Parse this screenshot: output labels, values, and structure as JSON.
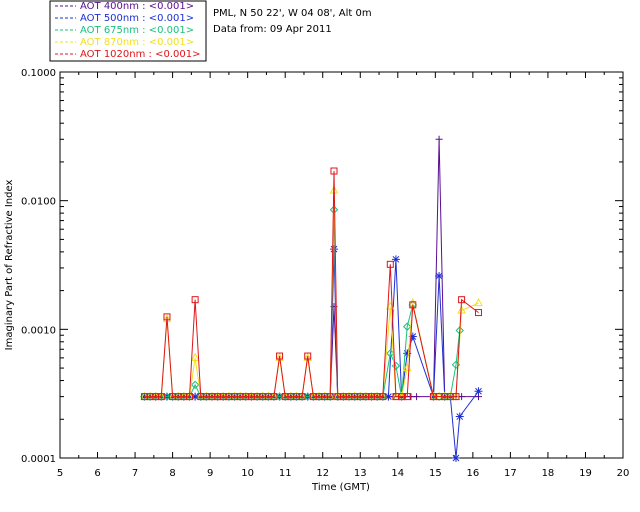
{
  "header": {
    "site": "PML, N 50 22', W 04 08', Alt 0m",
    "date": "Data from: 09 Apr 2011"
  },
  "chart_data": {
    "type": "line",
    "title": "",
    "xlabel": "Time (GMT)",
    "ylabel": "Imaginary Part of Refractive Index",
    "xlim": [
      5,
      20
    ],
    "ylim": [
      0.0001,
      0.1
    ],
    "yscale": "log",
    "x_ticks": [
      "5",
      "6",
      "7",
      "8",
      "9",
      "10",
      "11",
      "12",
      "13",
      "14",
      "15",
      "16",
      "17",
      "18",
      "19",
      "20"
    ],
    "y_ticks": [
      "0.0001",
      "0.0010",
      "0.0100",
      "0.1000"
    ],
    "legend_position": "top-left, outside",
    "series": [
      {
        "name": "AOT  400nm : <0.001>",
        "color": "#5a0f91",
        "marker": "plus",
        "x": [
          7.25,
          7.4,
          7.55,
          7.7,
          7.85,
          8.0,
          8.15,
          8.3,
          8.45,
          8.6,
          8.75,
          8.9,
          9.05,
          9.2,
          9.35,
          9.5,
          9.65,
          9.8,
          9.95,
          10.1,
          10.25,
          10.4,
          10.55,
          10.7,
          10.85,
          11.0,
          11.15,
          11.3,
          11.45,
          11.6,
          11.75,
          11.9,
          12.05,
          12.2,
          12.3,
          12.4,
          12.55,
          12.7,
          12.85,
          13.0,
          13.15,
          13.3,
          13.45,
          13.6,
          13.75,
          13.9,
          14.05,
          14.2,
          14.35,
          14.5,
          14.95,
          15.1,
          15.25,
          15.4,
          15.55,
          15.7,
          16.15
        ],
        "values": [
          0.0003,
          0.0003,
          0.0003,
          0.0003,
          0.0003,
          0.0003,
          0.0003,
          0.0003,
          0.0003,
          0.0003,
          0.0003,
          0.0003,
          0.0003,
          0.0003,
          0.0003,
          0.0003,
          0.0003,
          0.0003,
          0.0003,
          0.0003,
          0.0003,
          0.0003,
          0.0003,
          0.0003,
          0.0003,
          0.0003,
          0.0003,
          0.0003,
          0.0003,
          0.0003,
          0.0003,
          0.0003,
          0.0003,
          0.0003,
          0.0015,
          0.0003,
          0.0003,
          0.0003,
          0.0003,
          0.0003,
          0.0003,
          0.0003,
          0.0003,
          0.0003,
          0.0003,
          0.0003,
          0.0003,
          0.0003,
          0.0003,
          0.0003,
          0.0003,
          0.03,
          0.0003,
          0.0003,
          0.0003,
          0.0003,
          0.0003
        ]
      },
      {
        "name": "AOT  500nm : <0.001>",
        "color": "#1f2fd6",
        "marker": "star",
        "x": [
          7.25,
          7.4,
          7.55,
          7.7,
          7.85,
          8.0,
          8.15,
          8.3,
          8.45,
          8.6,
          8.75,
          8.9,
          9.05,
          9.2,
          9.35,
          9.5,
          9.65,
          9.8,
          9.95,
          10.1,
          10.25,
          10.4,
          10.55,
          10.7,
          10.85,
          11.0,
          11.15,
          11.3,
          11.45,
          11.6,
          11.75,
          11.9,
          12.05,
          12.2,
          12.3,
          12.4,
          12.55,
          12.7,
          12.85,
          13.0,
          13.15,
          13.3,
          13.45,
          13.6,
          13.75,
          13.95,
          14.1,
          14.25,
          14.4,
          14.95,
          15.1,
          15.25,
          15.4,
          15.55,
          15.65,
          16.15
        ],
        "values": [
          0.0003,
          0.0003,
          0.0003,
          0.0003,
          0.0003,
          0.0003,
          0.0003,
          0.0003,
          0.0003,
          0.0003,
          0.0003,
          0.0003,
          0.0003,
          0.0003,
          0.0003,
          0.0003,
          0.0003,
          0.0003,
          0.0003,
          0.0003,
          0.0003,
          0.0003,
          0.0003,
          0.0003,
          0.0003,
          0.0003,
          0.0003,
          0.0003,
          0.0003,
          0.0003,
          0.0003,
          0.0003,
          0.0003,
          0.0003,
          0.0042,
          0.0003,
          0.0003,
          0.0003,
          0.0003,
          0.0003,
          0.0003,
          0.0003,
          0.0003,
          0.0003,
          0.0003,
          0.0035,
          0.0003,
          0.00065,
          0.00088,
          0.0003,
          0.0026,
          0.0003,
          0.0003,
          0.0001,
          0.00021,
          0.00033
        ]
      },
      {
        "name": "AOT  675nm : <0.001>",
        "color": "#19c07e",
        "marker": "diamond",
        "x": [
          7.25,
          7.4,
          7.55,
          7.7,
          7.85,
          8.0,
          8.15,
          8.3,
          8.45,
          8.6,
          8.75,
          8.9,
          9.05,
          9.2,
          9.35,
          9.5,
          9.65,
          9.8,
          9.95,
          10.1,
          10.25,
          10.4,
          10.55,
          10.7,
          10.85,
          11.0,
          11.15,
          11.3,
          11.45,
          11.6,
          11.75,
          11.9,
          12.05,
          12.2,
          12.3,
          12.4,
          12.55,
          12.7,
          12.85,
          13.0,
          13.15,
          13.3,
          13.45,
          13.6,
          13.8,
          13.95,
          14.1,
          14.25,
          14.4,
          14.95,
          15.1,
          15.25,
          15.4,
          15.55,
          15.65
        ],
        "values": [
          0.0003,
          0.0003,
          0.0003,
          0.0003,
          0.0003,
          0.0003,
          0.0003,
          0.0003,
          0.0003,
          0.00037,
          0.0003,
          0.0003,
          0.0003,
          0.0003,
          0.0003,
          0.0003,
          0.0003,
          0.0003,
          0.0003,
          0.0003,
          0.0003,
          0.0003,
          0.0003,
          0.0003,
          0.0003,
          0.0003,
          0.0003,
          0.0003,
          0.0003,
          0.0003,
          0.0003,
          0.0003,
          0.0003,
          0.0003,
          0.0085,
          0.0003,
          0.0003,
          0.0003,
          0.0003,
          0.0003,
          0.0003,
          0.0003,
          0.0003,
          0.0003,
          0.00065,
          0.00052,
          0.0003,
          0.00105,
          0.00155,
          0.0003,
          0.0003,
          0.0003,
          0.0003,
          0.00053,
          0.00098
        ]
      },
      {
        "name": "AOT  870nm : <0.001>",
        "color": "#f2e01e",
        "marker": "triangle",
        "x": [
          7.25,
          7.4,
          7.55,
          7.7,
          7.85,
          8.0,
          8.15,
          8.3,
          8.45,
          8.6,
          8.75,
          8.9,
          9.05,
          9.2,
          9.35,
          9.5,
          9.65,
          9.8,
          9.95,
          10.1,
          10.25,
          10.4,
          10.55,
          10.7,
          10.85,
          11.0,
          11.15,
          11.3,
          11.45,
          11.6,
          11.75,
          11.9,
          12.05,
          12.2,
          12.3,
          12.4,
          12.55,
          12.7,
          12.85,
          13.0,
          13.15,
          13.3,
          13.45,
          13.6,
          13.8,
          13.95,
          14.1,
          14.25,
          14.4,
          14.95,
          15.1,
          15.25,
          15.4,
          15.55,
          15.7,
          16.15
        ],
        "values": [
          0.0003,
          0.0003,
          0.0003,
          0.0003,
          0.0012,
          0.0003,
          0.0003,
          0.0003,
          0.0003,
          0.0006,
          0.0003,
          0.0003,
          0.0003,
          0.0003,
          0.0003,
          0.0003,
          0.0003,
          0.0003,
          0.0003,
          0.0003,
          0.0003,
          0.0003,
          0.0003,
          0.0003,
          0.0006,
          0.0003,
          0.0003,
          0.0003,
          0.0003,
          0.0006,
          0.0003,
          0.0003,
          0.0003,
          0.0003,
          0.012,
          0.0003,
          0.0003,
          0.0003,
          0.0003,
          0.0003,
          0.0003,
          0.0003,
          0.0003,
          0.0003,
          0.0015,
          0.0003,
          0.0003,
          0.0005,
          0.0016,
          0.0003,
          0.0003,
          0.0003,
          0.0003,
          0.0003,
          0.0014,
          0.0016
        ]
      },
      {
        "name": "AOT 1020nm : <0.001>",
        "color": "#e0151a",
        "marker": "square",
        "x": [
          7.25,
          7.4,
          7.55,
          7.7,
          7.85,
          8.0,
          8.15,
          8.3,
          8.45,
          8.6,
          8.75,
          8.9,
          9.05,
          9.2,
          9.35,
          9.5,
          9.65,
          9.8,
          9.95,
          10.1,
          10.25,
          10.4,
          10.55,
          10.7,
          10.85,
          11.0,
          11.15,
          11.3,
          11.45,
          11.6,
          11.75,
          11.9,
          12.05,
          12.2,
          12.3,
          12.4,
          12.55,
          12.7,
          12.85,
          13.0,
          13.15,
          13.3,
          13.45,
          13.6,
          13.8,
          13.95,
          14.1,
          14.25,
          14.4,
          14.95,
          15.1,
          15.25,
          15.4,
          15.55,
          15.7,
          16.15
        ],
        "values": [
          0.0003,
          0.0003,
          0.0003,
          0.0003,
          0.00125,
          0.0003,
          0.0003,
          0.0003,
          0.0003,
          0.0017,
          0.0003,
          0.0003,
          0.0003,
          0.0003,
          0.0003,
          0.0003,
          0.0003,
          0.0003,
          0.0003,
          0.0003,
          0.0003,
          0.0003,
          0.0003,
          0.0003,
          0.00062,
          0.0003,
          0.0003,
          0.0003,
          0.0003,
          0.00062,
          0.0003,
          0.0003,
          0.0003,
          0.0003,
          0.017,
          0.0003,
          0.0003,
          0.0003,
          0.0003,
          0.0003,
          0.0003,
          0.0003,
          0.0003,
          0.0003,
          0.0032,
          0.0003,
          0.0003,
          0.0003,
          0.00155,
          0.0003,
          0.0003,
          0.0003,
          0.0003,
          0.0003,
          0.0017,
          0.00135
        ]
      }
    ]
  }
}
